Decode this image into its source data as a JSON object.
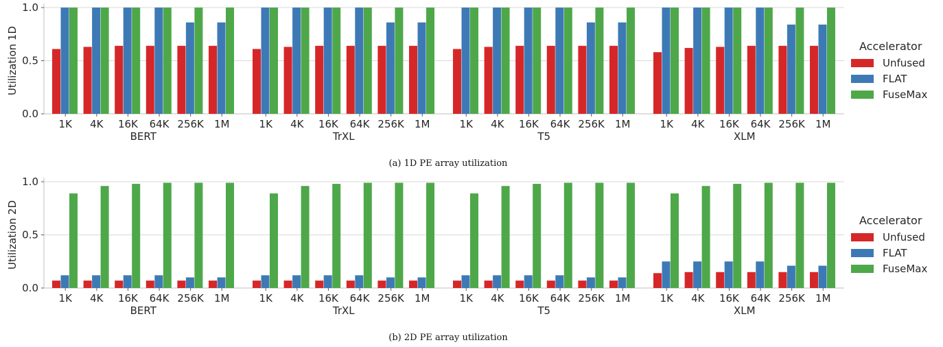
{
  "chart_data": [
    {
      "type": "bar",
      "ylabel": "Utilization 1D",
      "ylim": [
        0,
        1.0
      ],
      "yticks": [
        "0.0",
        "0.5",
        "1.0"
      ],
      "groups": [
        "BERT",
        "TrXL",
        "T5",
        "XLM"
      ],
      "categories": [
        "1K",
        "4K",
        "16K",
        "64K",
        "256K",
        "1M"
      ],
      "grid": true,
      "legend": {
        "title": "Accelerator",
        "placement": "right"
      },
      "series": [
        {
          "name": "Unfused",
          "color": "#d62728",
          "values": [
            [
              0.61,
              0.63,
              0.64,
              0.64,
              0.64,
              0.64
            ],
            [
              0.61,
              0.63,
              0.64,
              0.64,
              0.64,
              0.64
            ],
            [
              0.61,
              0.63,
              0.64,
              0.64,
              0.64,
              0.64
            ],
            [
              0.58,
              0.62,
              0.63,
              0.64,
              0.64,
              0.64
            ]
          ]
        },
        {
          "name": "FLAT",
          "color": "#3d7ab5",
          "values": [
            [
              1.0,
              1.0,
              1.0,
              1.0,
              0.86,
              0.86
            ],
            [
              1.0,
              1.0,
              1.0,
              1.0,
              0.86,
              0.86
            ],
            [
              1.0,
              1.0,
              1.0,
              1.0,
              0.86,
              0.86
            ],
            [
              1.0,
              1.0,
              1.0,
              1.0,
              0.84,
              0.84
            ]
          ]
        },
        {
          "name": "FuseMax",
          "color": "#4ea84a",
          "values": [
            [
              1.0,
              1.0,
              1.0,
              1.0,
              1.0,
              1.0
            ],
            [
              1.0,
              1.0,
              1.0,
              1.0,
              1.0,
              1.0
            ],
            [
              1.0,
              1.0,
              1.0,
              1.0,
              1.0,
              1.0
            ],
            [
              1.0,
              1.0,
              1.0,
              1.0,
              1.0,
              1.0
            ]
          ]
        }
      ],
      "caption": "(a) 1D PE array utilization"
    },
    {
      "type": "bar",
      "ylabel": "Utilization 2D",
      "ylim": [
        0,
        1.0
      ],
      "yticks": [
        "0.0",
        "0.5",
        "1.0"
      ],
      "groups": [
        "BERT",
        "TrXL",
        "T5",
        "XLM"
      ],
      "categories": [
        "1K",
        "4K",
        "16K",
        "64K",
        "256K",
        "1M"
      ],
      "grid": true,
      "legend": {
        "title": "Accelerator",
        "placement": "right"
      },
      "series": [
        {
          "name": "Unfused",
          "color": "#d62728",
          "values": [
            [
              0.07,
              0.07,
              0.07,
              0.07,
              0.07,
              0.07
            ],
            [
              0.07,
              0.07,
              0.07,
              0.07,
              0.07,
              0.07
            ],
            [
              0.07,
              0.07,
              0.07,
              0.07,
              0.07,
              0.07
            ],
            [
              0.14,
              0.15,
              0.15,
              0.15,
              0.15,
              0.15
            ]
          ]
        },
        {
          "name": "FLAT",
          "color": "#3d7ab5",
          "values": [
            [
              0.12,
              0.12,
              0.12,
              0.12,
              0.1,
              0.1
            ],
            [
              0.12,
              0.12,
              0.12,
              0.12,
              0.1,
              0.1
            ],
            [
              0.12,
              0.12,
              0.12,
              0.12,
              0.1,
              0.1
            ],
            [
              0.25,
              0.25,
              0.25,
              0.25,
              0.21,
              0.21
            ]
          ]
        },
        {
          "name": "FuseMax",
          "color": "#4ea84a",
          "values": [
            [
              0.89,
              0.96,
              0.98,
              0.99,
              0.99,
              0.99
            ],
            [
              0.89,
              0.96,
              0.98,
              0.99,
              0.99,
              0.99
            ],
            [
              0.89,
              0.96,
              0.98,
              0.99,
              0.99,
              0.99
            ],
            [
              0.89,
              0.96,
              0.98,
              0.99,
              0.99,
              0.99
            ]
          ]
        }
      ],
      "caption": "(b) 2D PE array utilization"
    }
  ]
}
